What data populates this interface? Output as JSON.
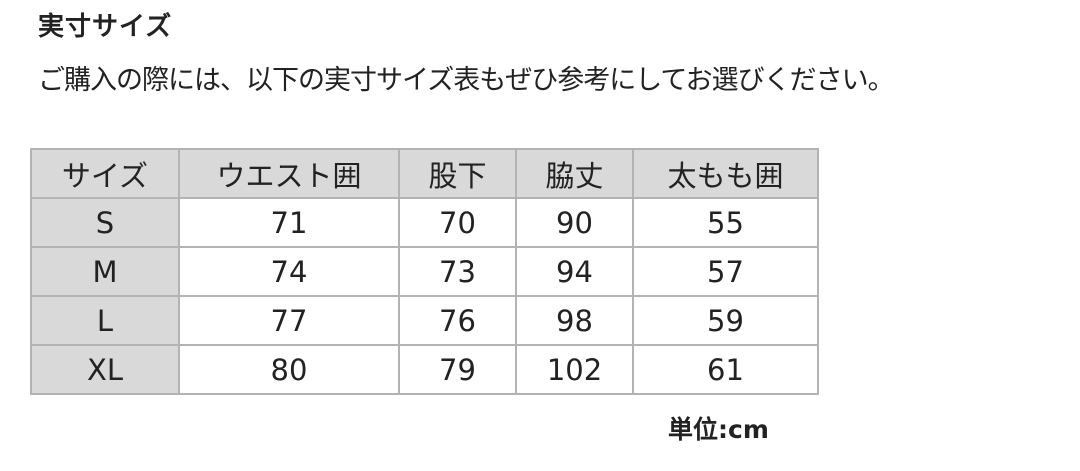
{
  "title": "実寸サイズ",
  "intro": "ご購入の際には、以下の実寸サイズ表もぜひ参考にしてお選びください。",
  "table": {
    "headers": [
      "サイズ",
      "ウエスト囲",
      "股下",
      "脇丈",
      "太もも囲"
    ],
    "rows": [
      [
        "S",
        "71",
        "70",
        "90",
        "55"
      ],
      [
        "M",
        "74",
        "73",
        "94",
        "57"
      ],
      [
        "L",
        "77",
        "76",
        "98",
        "59"
      ],
      [
        "XL",
        "80",
        "79",
        "102",
        "61"
      ]
    ]
  },
  "unit": "単位:cm"
}
